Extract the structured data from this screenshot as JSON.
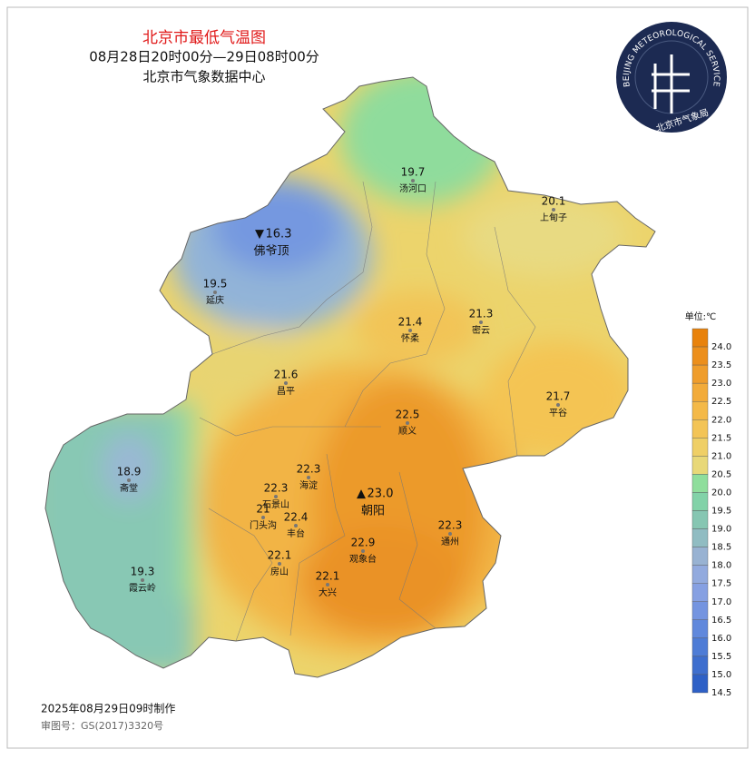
{
  "header": {
    "title": "北京市最低气温图",
    "subtitle": "08月28日20时00分—29日08时00分",
    "source": "北京市气象数据中心"
  },
  "logo": {
    "arc_text": "BEIJING METEOROLOGICAL SERVICE",
    "name": "北京市气象局"
  },
  "stations": [
    {
      "name": "汤河口",
      "value": 19.7
    },
    {
      "name": "上甸子",
      "value": 20.1
    },
    {
      "name": "佛爷顶",
      "value": 16.3,
      "marker": "▼"
    },
    {
      "name": "延庆",
      "value": 19.5
    },
    {
      "name": "怀柔",
      "value": 21.4
    },
    {
      "name": "密云",
      "value": 21.3
    },
    {
      "name": "昌平",
      "value": 21.6
    },
    {
      "name": "平谷",
      "value": 21.7
    },
    {
      "name": "顺义",
      "value": 22.5
    },
    {
      "name": "斋堂",
      "value": 18.9
    },
    {
      "name": "海淀",
      "value": 22.3
    },
    {
      "name": "石景山",
      "value": 22.3
    },
    {
      "name": "朝阳",
      "value": 23,
      "label": "23.0",
      "marker": "▲"
    },
    {
      "name": "门头沟",
      "value": 21
    },
    {
      "name": "丰台",
      "value": 22.4
    },
    {
      "name": "通州",
      "value": 22.3
    },
    {
      "name": "观象台",
      "value": 22.9
    },
    {
      "name": "房山",
      "value": 22.1
    },
    {
      "name": "大兴",
      "value": 22.1
    },
    {
      "name": "霞云岭",
      "value": 19.3
    }
  ],
  "legend": {
    "title": "单位:℃",
    "levels": [
      {
        "value": 24,
        "label": "24.0",
        "color": "#e8820c"
      },
      {
        "value": 23.5,
        "color": "#ec8f1c"
      },
      {
        "value": 23,
        "label": "23.0",
        "color": "#ef9d2c"
      },
      {
        "value": 22.5,
        "color": "#f2ab3a"
      },
      {
        "value": 22,
        "label": "22.0",
        "color": "#f4b948"
      },
      {
        "value": 21.5,
        "color": "#f3c456"
      },
      {
        "value": 21,
        "label": "21.0",
        "color": "#efcf66"
      },
      {
        "value": 20.5,
        "color": "#e8d878"
      },
      {
        "value": 20,
        "label": "20.0",
        "color": "#8fde9c"
      },
      {
        "value": 19.5,
        "color": "#82d2a8"
      },
      {
        "value": 19,
        "label": "19.0",
        "color": "#86c6b2"
      },
      {
        "value": 18.5,
        "color": "#90bcc2"
      },
      {
        "value": 18,
        "label": "18.0",
        "color": "#98b2d2"
      },
      {
        "value": 17.5,
        "color": "#92aade"
      },
      {
        "value": 17,
        "label": "17.0",
        "color": "#86a0e2"
      },
      {
        "value": 16.5,
        "color": "#7494e0"
      },
      {
        "value": 16,
        "label": "16.0",
        "color": "#6088dc"
      },
      {
        "value": 15.5,
        "color": "#4e7cd6"
      },
      {
        "value": 15,
        "label": "15.0",
        "color": "#3e6ece"
      },
      {
        "value": 14.5,
        "color": "#2e60c6"
      }
    ]
  },
  "footer": {
    "made": "2025年08月29日09时制作",
    "approval": "审图号：GS(2017)3320号"
  }
}
